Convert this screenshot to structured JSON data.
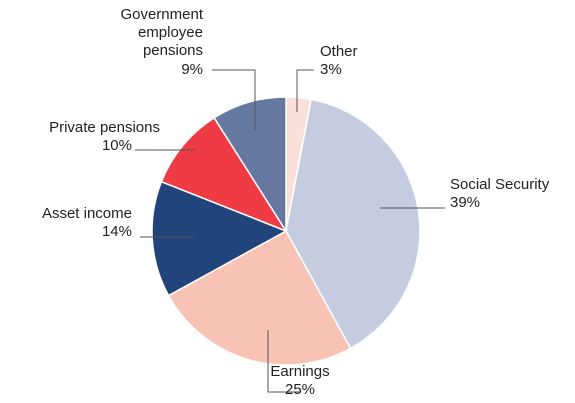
{
  "chart_data": {
    "type": "pie",
    "categories": [
      "Other",
      "Social Security",
      "Earnings",
      "Asset income",
      "Private pensions",
      "Government employee pensions"
    ],
    "values": [
      3,
      39,
      25,
      14,
      10,
      9
    ],
    "value_labels": [
      "3%",
      "39%",
      "25%",
      "14%",
      "10%",
      "9%"
    ],
    "colors": [
      "#fbe0da",
      "#c5cce0",
      "#f8c2b4",
      "#21447a",
      "#ef3b44",
      "#6478a0"
    ]
  }
}
